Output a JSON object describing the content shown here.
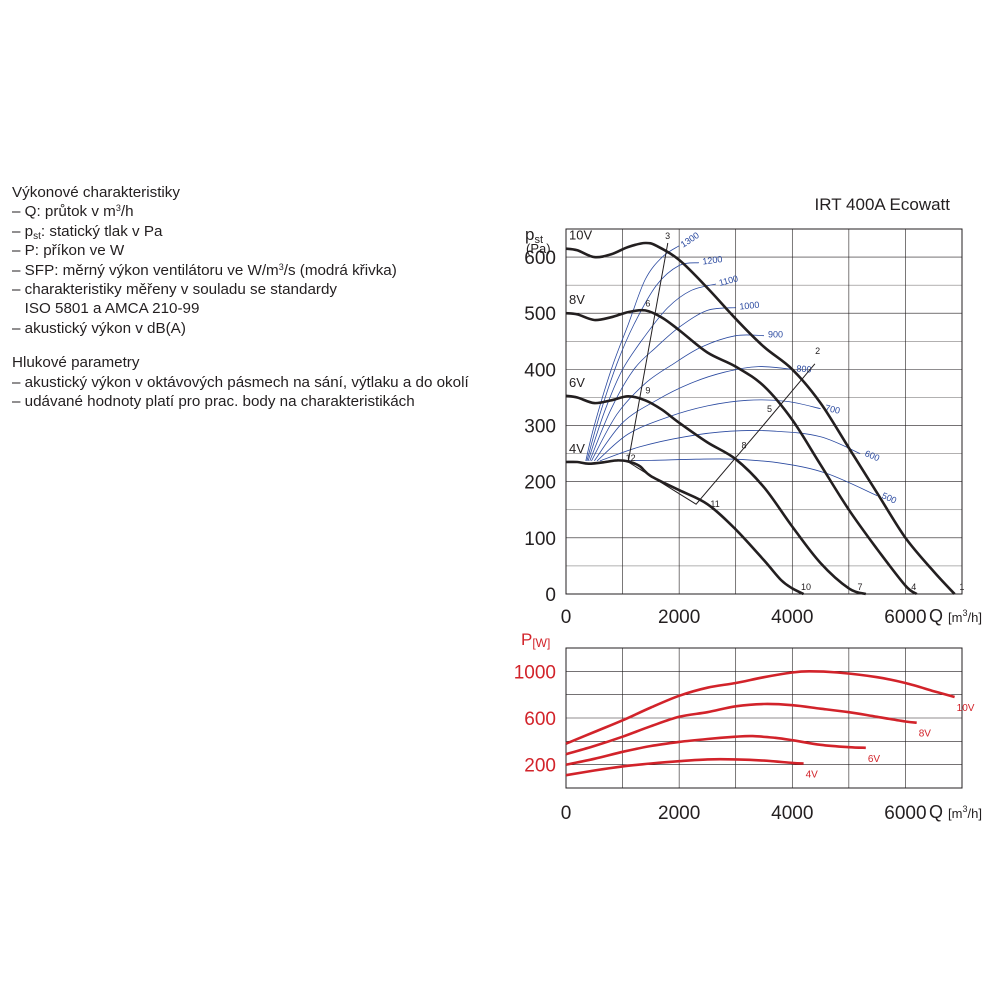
{
  "notes": {
    "section1_title": "Výkonové charakteristiky",
    "lines1": [
      {
        "pre": "– Q: průtok v m",
        "sup": "3",
        "post": "/h"
      },
      {
        "pre": "– p",
        "sub": "st",
        "post": ": statický tlak v Pa"
      },
      {
        "pre": "– P: příkon ve W"
      },
      {
        "pre": "– SFP: měrný výkon ventilátoru ve W/m",
        "sup": "3",
        "post": "/s (modrá křivka)"
      },
      {
        "pre": "– charakteristiky měřeny v souladu se standardy"
      },
      {
        "pre": "   ISO 5801 a AMCA 210-99"
      },
      {
        "pre": "– akustický výkon v dB(A)"
      }
    ],
    "section2_title": "Hlukové parametry",
    "lines2": [
      {
        "pre": "– akustický výkon v oktávových pásmech na sání, výtlaku a do okolí"
      },
      {
        "pre": "– udávané hodnoty platí pro prac. body na charakteristikách"
      }
    ]
  },
  "chart_data": [
    {
      "type": "line",
      "title": "IRT 400A Ecowatt",
      "ylabel": {
        "base": "p",
        "sub": "st",
        "unit": "(Pa)"
      },
      "xlabel": {
        "base": "Q",
        "unit": "[m",
        "sup": "3",
        "post": "/h]"
      },
      "xlim": [
        0,
        7000
      ],
      "ylim": [
        0,
        650
      ],
      "xticks": [
        0,
        2000,
        4000,
        6000
      ],
      "yticks": [
        0,
        100,
        200,
        300,
        400,
        500,
        600
      ],
      "grid": true,
      "series": [
        {
          "name": "10V",
          "x": [
            0,
            200,
            500,
            800,
            1100,
            1400,
            1600,
            2000,
            2500,
            3000,
            3500,
            4000,
            4500,
            5000,
            5500,
            6000,
            6500,
            6870
          ],
          "y": [
            615,
            612,
            600,
            605,
            618,
            625,
            620,
            595,
            545,
            490,
            440,
            400,
            340,
            260,
            180,
            100,
            40,
            0
          ]
        },
        {
          "name": "8V",
          "x": [
            0,
            200,
            500,
            800,
            1100,
            1400,
            1700,
            2000,
            2500,
            3000,
            3500,
            4000,
            4500,
            5000,
            5500,
            6000,
            6200
          ],
          "y": [
            500,
            498,
            488,
            493,
            502,
            505,
            492,
            470,
            430,
            405,
            370,
            310,
            230,
            150,
            80,
            15,
            0
          ]
        },
        {
          "name": "6V",
          "x": [
            0,
            200,
            500,
            800,
            1100,
            1400,
            1700,
            2000,
            2500,
            3000,
            3500,
            4000,
            4500,
            5000,
            5300
          ],
          "y": [
            353,
            350,
            340,
            345,
            352,
            345,
            328,
            305,
            270,
            240,
            190,
            120,
            55,
            10,
            0
          ]
        },
        {
          "name": "4V",
          "x": [
            0,
            200,
            400,
            700,
            900,
            1100,
            1300,
            1500,
            2000,
            2500,
            3000,
            3500,
            3800,
            4000,
            4200
          ],
          "y": [
            235,
            235,
            232,
            235,
            238,
            236,
            228,
            210,
            185,
            160,
            115,
            60,
            25,
            10,
            0
          ]
        }
      ],
      "sfp_curves": [
        {
          "label": "1300",
          "x": [
            350,
            500,
            800,
            1100,
            1400,
            1700,
            2000
          ],
          "y": [
            237,
            300,
            400,
            480,
            560,
            600,
            620
          ]
        },
        {
          "label": "1200",
          "x": [
            370,
            600,
            900,
            1200,
            1600,
            2000,
            2350
          ],
          "y": [
            237,
            320,
            410,
            480,
            550,
            585,
            590
          ]
        },
        {
          "label": "1100",
          "x": [
            390,
            700,
            1000,
            1400,
            1800,
            2200,
            2650
          ],
          "y": [
            237,
            330,
            400,
            460,
            510,
            540,
            552
          ]
        },
        {
          "label": "1000",
          "x": [
            420,
            800,
            1200,
            1600,
            2000,
            2500,
            3000
          ],
          "y": [
            237,
            330,
            400,
            440,
            475,
            505,
            510
          ]
        },
        {
          "label": "900",
          "x": [
            450,
            900,
            1400,
            1900,
            2400,
            3000,
            3500
          ],
          "y": [
            237,
            320,
            375,
            410,
            440,
            460,
            460
          ]
        },
        {
          "label": "800",
          "x": [
            500,
            1000,
            1600,
            2200,
            2800,
            3400,
            4000
          ],
          "y": [
            237,
            305,
            345,
            375,
            395,
            405,
            400
          ]
        },
        {
          "label": "700",
          "x": [
            550,
            1100,
            1800,
            2500,
            3200,
            3900,
            4500
          ],
          "y": [
            237,
            285,
            315,
            335,
            345,
            343,
            330
          ]
        },
        {
          "label": "600",
          "x": [
            600,
            1300,
            2100,
            2900,
            3700,
            4500,
            5200
          ],
          "y": [
            237,
            262,
            280,
            290,
            290,
            280,
            250
          ]
        },
        {
          "label": "500",
          "x": [
            700,
            1500,
            2300,
            3000,
            3800,
            4600,
            5500
          ],
          "y": [
            237,
            238,
            240,
            240,
            233,
            215,
            175
          ]
        }
      ],
      "points": [
        {
          "id": "1",
          "x": 6900,
          "y": 0
        },
        {
          "id": "2",
          "x": 4350,
          "y": 420
        },
        {
          "id": "3",
          "x": 1700,
          "y": 625
        },
        {
          "id": "4",
          "x": 6050,
          "y": 0
        },
        {
          "id": "5",
          "x": 3500,
          "y": 317
        },
        {
          "id": "6",
          "x": 1350,
          "y": 505
        },
        {
          "id": "7",
          "x": 5100,
          "y": 0
        },
        {
          "id": "8",
          "x": 3050,
          "y": 252
        },
        {
          "id": "9",
          "x": 1350,
          "y": 350
        },
        {
          "id": "10",
          "x": 4100,
          "y": 0
        },
        {
          "id": "11",
          "x": 2500,
          "y": 148
        },
        {
          "id": "12",
          "x": 1000,
          "y": 230
        }
      ],
      "load_lines": [
        {
          "x": [
            1100,
            1800
          ],
          "y": [
            235,
            625
          ]
        },
        {
          "x": [
            1100,
            2300,
            3400,
            4400
          ],
          "y": [
            235,
            160,
            290,
            410
          ]
        }
      ]
    },
    {
      "type": "line",
      "ylabel": {
        "base": "P",
        "unit": "[W]"
      },
      "xlabel": {
        "base": "Q",
        "unit": "[m",
        "sup": "3",
        "post": "/h]"
      },
      "xlim": [
        0,
        7000
      ],
      "ylim": [
        0,
        1200
      ],
      "xticks": [
        0,
        2000,
        4000,
        6000
      ],
      "yticks": [
        200,
        600,
        1000
      ],
      "grid": true,
      "series": [
        {
          "name": "10V",
          "x": [
            0,
            500,
            1000,
            1500,
            2000,
            2500,
            3000,
            3500,
            4000,
            4300,
            4800,
            5500,
            6000,
            6500,
            6870
          ],
          "y": [
            380,
            480,
            580,
            690,
            790,
            860,
            900,
            950,
            990,
            1000,
            990,
            950,
            900,
            830,
            780
          ]
        },
        {
          "name": "8V",
          "x": [
            0,
            500,
            1000,
            1500,
            2000,
            2500,
            3000,
            3500,
            4000,
            4500,
            5000,
            5500,
            6000,
            6200
          ],
          "y": [
            290,
            360,
            440,
            530,
            610,
            650,
            700,
            720,
            710,
            680,
            650,
            610,
            570,
            560
          ]
        },
        {
          "name": "6V",
          "x": [
            0,
            500,
            1000,
            1500,
            2000,
            2500,
            3000,
            3300,
            3700,
            4000,
            4500,
            5000,
            5300
          ],
          "y": [
            200,
            250,
            310,
            360,
            395,
            420,
            440,
            445,
            430,
            410,
            370,
            350,
            345
          ]
        },
        {
          "name": "4V",
          "x": [
            0,
            500,
            1000,
            1500,
            2000,
            2500,
            3000,
            3500,
            4000,
            4200
          ],
          "y": [
            110,
            150,
            185,
            210,
            230,
            245,
            245,
            235,
            215,
            210
          ]
        }
      ]
    }
  ],
  "colors": {
    "main": "#231f20",
    "grid": "#231f20",
    "sfp": "#2b4aa0",
    "power": "#d2232a"
  }
}
